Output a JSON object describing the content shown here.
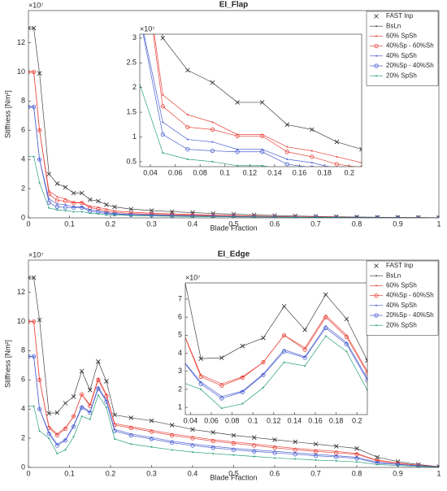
{
  "chart_data": [
    {
      "type": "line",
      "title": "EI_Flap",
      "xlabel": "Blade Fraction",
      "ylabel": "Stiffness [Nm²]",
      "y_exponent": "×10⁷",
      "xlim": [
        0,
        1
      ],
      "ylim": [
        0,
        14.2
      ],
      "xticks": [
        0,
        0.1,
        0.2,
        0.3,
        0.4,
        0.5,
        0.6,
        0.7,
        0.8,
        0.9,
        1
      ],
      "yticks": [
        0,
        2,
        4,
        6,
        8,
        10,
        12
      ],
      "legend": "upper right",
      "inset": {
        "xlim": [
          0.0315,
          0.21
        ],
        "ylim": [
          0.4,
          3.08
        ],
        "xticks": [
          0.04,
          0.06,
          0.08,
          0.1,
          0.12,
          0.14,
          0.16,
          0.18,
          0.2
        ],
        "yticks": [
          0.5,
          1,
          1.5,
          2,
          2.5,
          3
        ],
        "y_exponent": "×10⁷"
      },
      "x": [
        0,
        0.013,
        0.027,
        0.05,
        0.07,
        0.09,
        0.11,
        0.13,
        0.15,
        0.17,
        0.19,
        0.21,
        0.25,
        0.3,
        0.35,
        0.4,
        0.45,
        0.5,
        0.55,
        0.6,
        0.65,
        0.7,
        0.75,
        0.8,
        0.85,
        0.9,
        0.95,
        1
      ],
      "series": [
        {
          "name": "FAST Inp",
          "color": "#262626",
          "marker": "x",
          "line": false,
          "values": [
            13,
            13,
            9.9,
            3.0,
            2.35,
            2.1,
            1.7,
            1.7,
            1.25,
            1.15,
            0.9,
            0.75,
            0.6,
            0.5,
            0.42,
            0.36,
            0.3,
            0.25,
            0.2,
            0.16,
            0.13,
            0.1,
            0.08,
            0.06,
            0.04,
            0.03,
            0.02,
            0.01
          ]
        },
        {
          "name": "BsLn",
          "color": "#444444",
          "marker": "dot",
          "line": true,
          "values": [
            13,
            13,
            9.9,
            3.0,
            2.35,
            2.1,
            1.7,
            1.7,
            1.25,
            1.15,
            0.9,
            0.75,
            0.6,
            0.5,
            0.42,
            0.36,
            0.3,
            0.25,
            0.2,
            0.16,
            0.13,
            0.1,
            0.08,
            0.06,
            0.04,
            0.03,
            0.02,
            0.01
          ]
        },
        {
          "name": "60% SpSh",
          "color": "#e8433a",
          "marker": "dot",
          "line": true,
          "values": [
            10,
            10,
            6.0,
            1.85,
            1.45,
            1.3,
            1.05,
            1.05,
            0.8,
            0.72,
            0.6,
            0.48,
            0.39,
            0.32,
            0.27,
            0.23,
            0.19,
            0.16,
            0.13,
            0.1,
            0.08,
            0.065,
            0.05,
            0.04,
            0.03,
            0.02,
            0.013,
            0.007
          ]
        },
        {
          "name": "40%Sp - 60%Sh",
          "color": "#e8433a",
          "marker": "circle",
          "line": true,
          "values": [
            10,
            10,
            6.0,
            1.62,
            1.2,
            1.15,
            1.02,
            1.02,
            0.7,
            0.6,
            0.45,
            0.38,
            0.3,
            0.25,
            0.21,
            0.18,
            0.15,
            0.12,
            0.1,
            0.08,
            0.065,
            0.05,
            0.04,
            0.03,
            0.025,
            0.018,
            0.012,
            0.006
          ]
        },
        {
          "name": "40% SpSh",
          "color": "#4a5fd0",
          "marker": "dot",
          "line": true,
          "values": [
            7.6,
            7.6,
            4.0,
            1.3,
            0.95,
            0.9,
            0.75,
            0.75,
            0.55,
            0.48,
            0.36,
            0.3,
            0.24,
            0.2,
            0.17,
            0.14,
            0.12,
            0.1,
            0.08,
            0.065,
            0.052,
            0.04,
            0.032,
            0.025,
            0.02,
            0.015,
            0.01,
            0.005
          ]
        },
        {
          "name": "20%Sp - 40%Sh",
          "color": "#4a5fd0",
          "marker": "circle",
          "line": true,
          "values": [
            7.6,
            7.6,
            4.0,
            1.05,
            0.75,
            0.72,
            0.7,
            0.7,
            0.45,
            0.38,
            0.3,
            0.25,
            0.2,
            0.17,
            0.14,
            0.12,
            0.1,
            0.085,
            0.07,
            0.055,
            0.045,
            0.035,
            0.028,
            0.022,
            0.017,
            0.012,
            0.008,
            0.004
          ]
        },
        {
          "name": "20% SpSh",
          "color": "#2aa07a",
          "marker": "dot",
          "line": true,
          "values": [
            4.2,
            4.2,
            2.4,
            0.68,
            0.55,
            0.5,
            0.42,
            0.42,
            0.32,
            0.28,
            0.22,
            0.2,
            0.16,
            0.13,
            0.11,
            0.09,
            0.08,
            0.065,
            0.055,
            0.045,
            0.036,
            0.028,
            0.022,
            0.017,
            0.013,
            0.01,
            0.006,
            0.003
          ]
        }
      ]
    },
    {
      "type": "line",
      "title": "EI_Edge",
      "xlabel": "Blade Fraction",
      "ylabel": "Stiffness [Nm²]",
      "y_exponent": "×10⁷",
      "xlim": [
        0,
        1
      ],
      "ylim": [
        0,
        14.2
      ],
      "xticks": [
        0,
        0.1,
        0.2,
        0.3,
        0.4,
        0.5,
        0.6,
        0.7,
        0.8,
        0.9,
        1
      ],
      "yticks": [
        0,
        2,
        4,
        6,
        8,
        10,
        12
      ],
      "legend": "upper right",
      "inset": {
        "xlim": [
          0.035,
          0.21
        ],
        "ylim": [
          0.6,
          7.9
        ],
        "xticks": [
          0.04,
          0.06,
          0.08,
          0.1,
          0.12,
          0.14,
          0.16,
          0.18,
          0.2
        ],
        "yticks": [
          1,
          2,
          3,
          4,
          5,
          6,
          7
        ],
        "y_exponent": "×10⁷"
      },
      "x": [
        0,
        0.013,
        0.027,
        0.05,
        0.07,
        0.09,
        0.11,
        0.13,
        0.15,
        0.17,
        0.19,
        0.21,
        0.25,
        0.3,
        0.35,
        0.4,
        0.45,
        0.5,
        0.55,
        0.6,
        0.65,
        0.7,
        0.75,
        0.8,
        0.85,
        0.9,
        0.95,
        1
      ],
      "series": [
        {
          "name": "FAST Inp",
          "color": "#262626",
          "marker": "x",
          "line": false,
          "values": [
            13,
            13,
            10.1,
            3.7,
            3.75,
            4.4,
            4.85,
            6.6,
            5.3,
            7.25,
            5.9,
            3.6,
            3.4,
            3.2,
            2.9,
            2.6,
            2.4,
            2.2,
            2.05,
            1.9,
            1.75,
            1.6,
            1.45,
            1.3,
            0.7,
            0.4,
            0.2,
            0.05
          ]
        },
        {
          "name": "BsLn",
          "color": "#444444",
          "marker": "dot",
          "line": true,
          "values": [
            13,
            13,
            10.1,
            3.7,
            3.75,
            4.4,
            4.85,
            6.6,
            5.3,
            7.25,
            5.9,
            3.6,
            3.4,
            3.2,
            2.9,
            2.6,
            2.4,
            2.2,
            2.05,
            1.9,
            1.75,
            1.6,
            1.45,
            1.3,
            0.7,
            0.4,
            0.2,
            0.05
          ]
        },
        {
          "name": "60% SpSh",
          "color": "#e8433a",
          "marker": "dot",
          "line": true,
          "values": [
            10,
            10,
            6.0,
            2.8,
            2.3,
            2.7,
            3.5,
            5.0,
            4.3,
            6.1,
            5.0,
            3.0,
            2.8,
            2.55,
            2.3,
            2.1,
            1.9,
            1.75,
            1.6,
            1.45,
            1.3,
            1.2,
            1.1,
            0.95,
            0.5,
            0.3,
            0.15,
            0.04
          ]
        },
        {
          "name": "40%Sp - 60%Sh",
          "color": "#e8433a",
          "marker": "circle",
          "line": true,
          "values": [
            10,
            10,
            6.0,
            2.7,
            2.2,
            2.65,
            3.5,
            5.0,
            4.2,
            6.0,
            4.9,
            2.9,
            2.7,
            2.45,
            2.2,
            2.0,
            1.8,
            1.65,
            1.5,
            1.35,
            1.2,
            1.1,
            1.0,
            0.9,
            0.45,
            0.28,
            0.14,
            0.03
          ]
        },
        {
          "name": "40% SpSh",
          "color": "#4a5fd0",
          "marker": "dot",
          "line": true,
          "values": [
            7.6,
            7.6,
            4.0,
            2.4,
            1.6,
            1.9,
            2.85,
            4.2,
            3.8,
            5.5,
            4.6,
            2.6,
            2.3,
            2.05,
            1.8,
            1.6,
            1.45,
            1.3,
            1.2,
            1.1,
            1.0,
            0.9,
            0.8,
            0.7,
            0.35,
            0.22,
            0.11,
            0.02
          ]
        },
        {
          "name": "20%Sp - 40%Sh",
          "color": "#4a5fd0",
          "marker": "circle",
          "line": true,
          "values": [
            7.6,
            7.6,
            4.0,
            2.3,
            1.5,
            1.85,
            2.8,
            4.1,
            3.75,
            5.4,
            4.5,
            2.5,
            2.2,
            1.95,
            1.7,
            1.5,
            1.35,
            1.2,
            1.1,
            1.0,
            0.9,
            0.8,
            0.72,
            0.62,
            0.3,
            0.2,
            0.1,
            0.02
          ]
        },
        {
          "name": "20% SpSh",
          "color": "#2aa07a",
          "marker": "dot",
          "line": true,
          "values": [
            4.2,
            4.2,
            2.5,
            2.0,
            0.95,
            1.2,
            2.1,
            3.5,
            3.3,
            4.95,
            4.1,
            1.95,
            1.6,
            1.4,
            1.2,
            1.05,
            0.95,
            0.85,
            0.75,
            0.65,
            0.58,
            0.5,
            0.45,
            0.38,
            0.2,
            0.13,
            0.07,
            0.01
          ]
        }
      ]
    }
  ]
}
